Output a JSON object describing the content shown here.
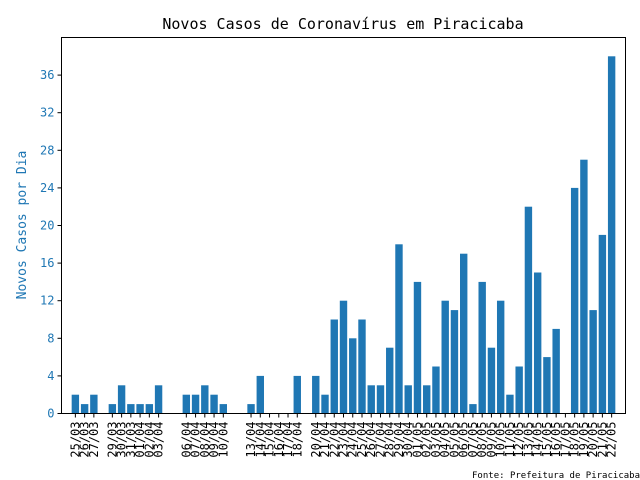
{
  "chart_data": {
    "type": "bar",
    "title": "Novos Casos de Coronavírus em Piracicaba",
    "xlabel": "",
    "ylabel": "Novos Casos por Dia",
    "ylim": [
      0,
      40
    ],
    "yticks": [
      0,
      4,
      8,
      12,
      16,
      20,
      24,
      28,
      32,
      36
    ],
    "grid": false,
    "legend": "none",
    "source_note": "Fonte: Prefeitura de Piracicaba",
    "colors": {
      "bar": "#1f77b4",
      "ylabel": "#1f77b4",
      "text": "#000000"
    },
    "bars": [
      {
        "date": "25/03",
        "value": 2
      },
      {
        "date": "26/03",
        "value": 1
      },
      {
        "date": "27/03",
        "value": 2
      },
      {
        "date": "28/03",
        "value": 0
      },
      {
        "date": "29/03",
        "value": 1
      },
      {
        "date": "30/03",
        "value": 3
      },
      {
        "date": "31/03",
        "value": 1
      },
      {
        "date": "01/04",
        "value": 1
      },
      {
        "date": "02/04",
        "value": 1
      },
      {
        "date": "03/04",
        "value": 3
      },
      {
        "date": "04/04",
        "value": 0
      },
      {
        "date": "05/04",
        "value": 0
      },
      {
        "date": "06/04",
        "value": 2
      },
      {
        "date": "07/04",
        "value": 2
      },
      {
        "date": "08/04",
        "value": 3
      },
      {
        "date": "09/04",
        "value": 2
      },
      {
        "date": "10/04",
        "value": 1
      },
      {
        "date": "11/04",
        "value": 0
      },
      {
        "date": "12/04",
        "value": 0
      },
      {
        "date": "13/04",
        "value": 1
      },
      {
        "date": "14/04",
        "value": 4
      },
      {
        "date": "15/04",
        "value": 0
      },
      {
        "date": "16/04",
        "value": 0
      },
      {
        "date": "17/04",
        "value": 0
      },
      {
        "date": "18/04",
        "value": 4
      },
      {
        "date": "19/04",
        "value": 0
      },
      {
        "date": "20/04",
        "value": 4
      },
      {
        "date": "21/04",
        "value": 2
      },
      {
        "date": "22/04",
        "value": 10
      },
      {
        "date": "23/04",
        "value": 12
      },
      {
        "date": "24/04",
        "value": 8
      },
      {
        "date": "25/04",
        "value": 10
      },
      {
        "date": "26/04",
        "value": 3
      },
      {
        "date": "27/04",
        "value": 3
      },
      {
        "date": "28/04",
        "value": 7
      },
      {
        "date": "29/04",
        "value": 18
      },
      {
        "date": "30/04",
        "value": 3
      },
      {
        "date": "01/05",
        "value": 14
      },
      {
        "date": "02/05",
        "value": 3
      },
      {
        "date": "03/05",
        "value": 5
      },
      {
        "date": "04/05",
        "value": 12
      },
      {
        "date": "05/05",
        "value": 11
      },
      {
        "date": "06/05",
        "value": 17
      },
      {
        "date": "07/05",
        "value": 1
      },
      {
        "date": "08/05",
        "value": 14
      },
      {
        "date": "09/05",
        "value": 7
      },
      {
        "date": "10/05",
        "value": 12
      },
      {
        "date": "11/05",
        "value": 2
      },
      {
        "date": "12/05",
        "value": 5
      },
      {
        "date": "13/05",
        "value": 22
      },
      {
        "date": "14/05",
        "value": 15
      },
      {
        "date": "15/05",
        "value": 6
      },
      {
        "date": "16/05",
        "value": 9
      },
      {
        "date": "17/05",
        "value": 0
      },
      {
        "date": "18/05",
        "value": 24
      },
      {
        "date": "19/05",
        "value": 27
      },
      {
        "date": "20/05",
        "value": 11
      },
      {
        "date": "21/05",
        "value": 19
      },
      {
        "date": "22/05",
        "value": 38
      }
    ],
    "xtick_labels": [
      "25/03",
      "26/03",
      "27/03",
      "29/03",
      "30/03",
      "31/03",
      "01/04",
      "02/04",
      "03/04",
      "06/04",
      "07/04",
      "08/04",
      "09/04",
      "10/04",
      "13/04",
      "14/04",
      "15/04",
      "16/04",
      "17/04",
      "18/04",
      "20/04",
      "21/04",
      "22/04",
      "23/04",
      "24/04",
      "25/04",
      "26/04",
      "27/04",
      "28/04",
      "29/04",
      "30/04",
      "01/05",
      "02/05",
      "03/05",
      "04/05",
      "05/05",
      "06/05",
      "07/05",
      "08/05",
      "09/05",
      "10/05",
      "11/05",
      "12/05",
      "13/05",
      "14/05",
      "15/05",
      "16/05",
      "17/05",
      "18/05",
      "19/05",
      "20/05",
      "21/05",
      "22/05"
    ]
  }
}
